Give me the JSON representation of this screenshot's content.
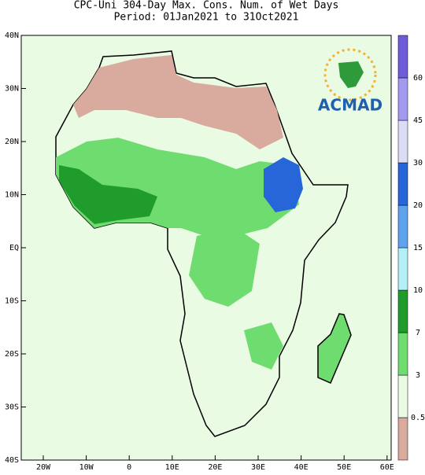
{
  "header": {
    "title": "CPC-Uni 304-Day Max. Cons. Num. of Wet Days",
    "subtitle": "Period: 01Jan2021 to 31Oct2021"
  },
  "logo": {
    "text": "ACMAD"
  },
  "lat_labels": [
    "40N",
    "30N",
    "20N",
    "10N",
    "EQ",
    "10S",
    "20S",
    "30S",
    "40S"
  ],
  "lon_labels": [
    "20W",
    "10W",
    "0",
    "10E",
    "20E",
    "30E",
    "40E",
    "50E",
    "60E"
  ],
  "colorbar": {
    "labels": [
      "0.5",
      "3",
      "7",
      "10",
      "15",
      "20",
      "30",
      "45",
      "60"
    ],
    "colors": [
      "#d9aa9e",
      "#e9fbe3",
      "#6fdc6f",
      "#1f9c2c",
      "#b5f0f8",
      "#5ea3ee",
      "#2766d8",
      "#dcdcf6",
      "#a39af0",
      "#6e5cd8"
    ]
  }
}
